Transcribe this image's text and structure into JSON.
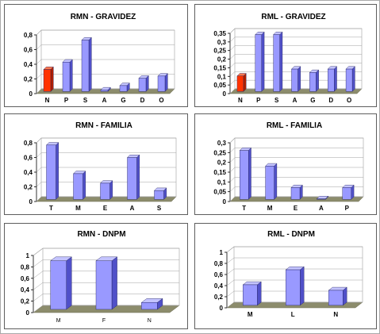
{
  "colors": {
    "bar_face": "#9999ff",
    "bar_side": "#5050c8",
    "bar_top": "#c4c4ff",
    "highlight_face": "#ff3300",
    "highlight_side": "#b02000",
    "highlight_top": "#ff7a50",
    "floor": "#8c8c6c",
    "grid": "#a0a0a0",
    "panel_border": "#5e5e5e"
  },
  "chart_data": [
    {
      "type": "bar",
      "title": "RMN - GRAVIDEZ",
      "categories": [
        "N",
        "P",
        "S",
        "A",
        "G",
        "D",
        "O"
      ],
      "values": [
        0.3,
        0.4,
        0.7,
        0.02,
        0.08,
        0.18,
        0.21
      ],
      "highlight_index": 0,
      "ylim": [
        0,
        0.8
      ],
      "yticks": [
        "0",
        "0,2",
        "0,4",
        "0,6",
        "0,8"
      ],
      "grid": true
    },
    {
      "type": "bar",
      "title": "RML - GRAVIDEZ",
      "categories": [
        "N",
        "P",
        "S",
        "A",
        "G",
        "D",
        "O"
      ],
      "values": [
        0.09,
        0.33,
        0.33,
        0.13,
        0.11,
        0.13,
        0.13
      ],
      "highlight_index": 0,
      "ylim": [
        0,
        0.35
      ],
      "yticks": [
        "0",
        "0,05",
        "0,1",
        "0,15",
        "0,2",
        "0,25",
        "0,3",
        "0,35"
      ],
      "grid": true
    },
    {
      "type": "bar",
      "title": "RMN - FAMILIA",
      "categories": [
        "T",
        "M",
        "E",
        "A",
        "S"
      ],
      "values": [
        0.74,
        0.35,
        0.22,
        0.57,
        0.12
      ],
      "ylim": [
        0,
        0.8
      ],
      "yticks": [
        "0",
        "0,2",
        "0,4",
        "0,6",
        "0,8"
      ],
      "grid": true
    },
    {
      "type": "bar",
      "title": "RML - FAMILIA",
      "categories": [
        "T",
        "M",
        "E",
        "A",
        "P"
      ],
      "values": [
        0.25,
        0.17,
        0.06,
        0.003,
        0.06
      ],
      "ylim": [
        0,
        0.3
      ],
      "yticks": [
        "0",
        "0,05",
        "0,1",
        "0,15",
        "0,2",
        "0,25",
        "0,3"
      ],
      "grid": true
    },
    {
      "type": "bar",
      "title": "RMN - DNPM",
      "categories": [
        "M",
        "F",
        "N"
      ],
      "values": [
        0.85,
        0.85,
        0.12
      ],
      "ylim": [
        0,
        1
      ],
      "yticks": [
        "0",
        "0,2",
        "0,4",
        "0,6",
        "0,8",
        "1"
      ],
      "grid": true
    },
    {
      "type": "bar",
      "title": "RML - DNPM",
      "categories": [
        "M",
        "L",
        "N"
      ],
      "values": [
        0.37,
        0.64,
        0.27
      ],
      "ylim": [
        0,
        1
      ],
      "yticks": [
        "0",
        "0,2",
        "0,4",
        "0,6",
        "0,8",
        "1"
      ],
      "grid": true
    }
  ]
}
